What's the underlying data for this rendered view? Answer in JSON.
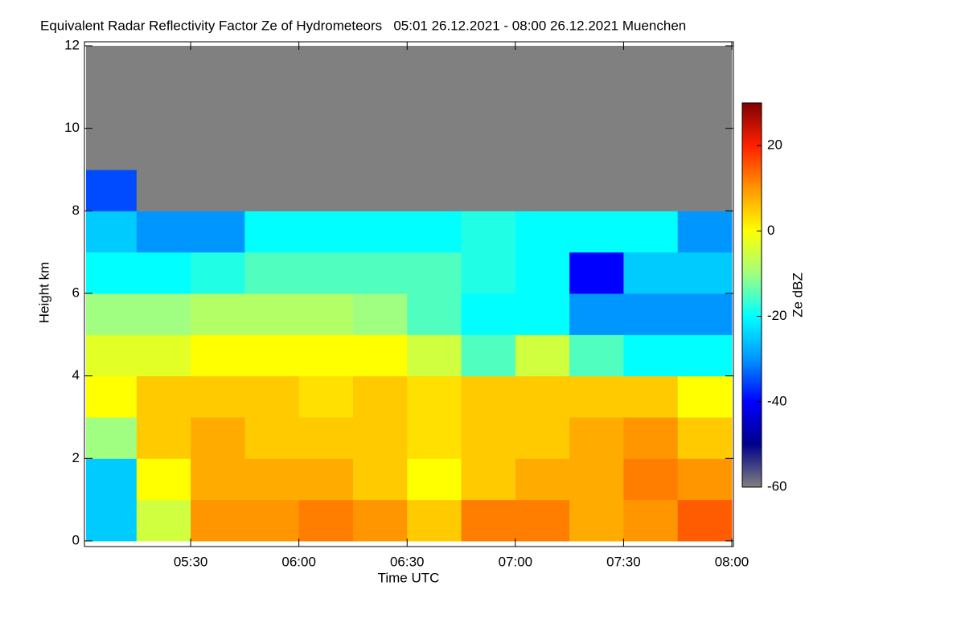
{
  "chart_data": {
    "type": "heatmap",
    "title": "Equivalent Radar Reflectivity Factor Ze of Hydrometeors   05:01 26.12.2021 - 08:00 26.12.2021 Muenchen",
    "x_label": "Time UTC",
    "y_label": "Height km",
    "colorbar_label": "Ze dBZ",
    "x_edges": [
      "05:01",
      "05:15",
      "05:30",
      "05:45",
      "06:00",
      "06:15",
      "06:30",
      "06:45",
      "07:00",
      "07:15",
      "07:30",
      "07:45",
      "08:00"
    ],
    "y_edges": [
      0,
      1,
      2,
      3,
      4,
      5,
      6,
      7,
      8,
      9,
      10,
      11,
      12
    ],
    "z": [
      [
        -25,
        -5,
        10,
        10,
        12,
        10,
        5,
        12,
        12,
        8,
        10,
        15
      ],
      [
        -25,
        0,
        8,
        8,
        8,
        5,
        0,
        5,
        8,
        8,
        12,
        10
      ],
      [
        -10,
        5,
        8,
        5,
        5,
        5,
        3,
        5,
        5,
        8,
        10,
        5
      ],
      [
        0,
        5,
        5,
        5,
        3,
        5,
        3,
        5,
        5,
        5,
        5,
        0
      ],
      [
        -3,
        -3,
        0,
        0,
        0,
        0,
        -5,
        -15,
        -5,
        -15,
        -20,
        -20
      ],
      [
        -10,
        -10,
        -8,
        -8,
        -8,
        -10,
        -15,
        -20,
        -20,
        -30,
        -30,
        -30
      ],
      [
        -20,
        -20,
        -18,
        -15,
        -15,
        -15,
        -15,
        -18,
        -20,
        -40,
        -25,
        -25
      ],
      [
        -25,
        -30,
        -30,
        -20,
        -20,
        -20,
        -20,
        -18,
        -20,
        -20,
        -20,
        -30
      ],
      [
        -35,
        -60,
        -60,
        -60,
        -60,
        -60,
        -60,
        -60,
        -60,
        -60,
        -60,
        -60
      ],
      [
        -60,
        -60,
        -60,
        -60,
        -60,
        -60,
        -60,
        -60,
        -60,
        -60,
        -60,
        -60
      ],
      [
        -60,
        -60,
        -60,
        -60,
        -60,
        -60,
        -60,
        -60,
        -60,
        -60,
        -60,
        -60
      ],
      [
        -60,
        -60,
        -60,
        -60,
        -60,
        -60,
        -60,
        -60,
        -60,
        -60,
        -60,
        -60
      ]
    ],
    "xlim": [
      "05:01",
      "08:00"
    ],
    "xticks": [
      "05:30",
      "06:00",
      "06:30",
      "07:00",
      "07:30",
      "08:00"
    ],
    "ylim": [
      0,
      12
    ],
    "yticks": [
      0,
      2,
      4,
      6,
      8,
      10,
      12
    ],
    "zlim": [
      -60,
      30
    ],
    "zticks": [
      -60,
      -40,
      -20,
      0,
      20
    ],
    "colormap": [
      "#808080",
      "#00008b",
      "#0000ff",
      "#0096ff",
      "#00ffff",
      "#a0ff80",
      "#ffff00",
      "#ff9600",
      "#ff2000",
      "#800000"
    ]
  }
}
